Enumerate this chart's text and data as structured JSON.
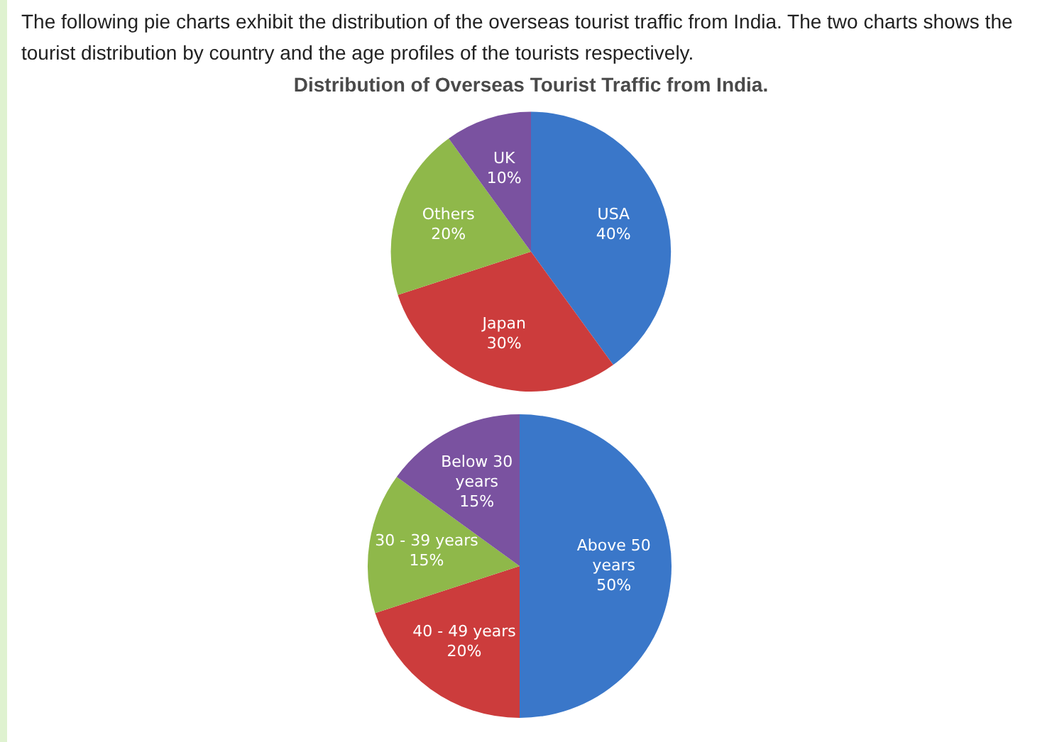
{
  "chart_data": [
    {
      "type": "pie",
      "title": "Distribution of Overseas Tourist Traffic from India.",
      "annotations": [
        "The following pie charts exhibit the distribution of the overseas tourist traffic from India. The two charts shows the tourist distribution by country and the age profiles of the tourists respectively."
      ],
      "categories": [
        "USA",
        "Japan",
        "Others",
        "UK"
      ],
      "values": [
        40,
        30,
        20,
        10
      ],
      "value_labels": [
        "40%",
        "30%",
        "20%",
        "10%"
      ],
      "colors": [
        "#3a77c9",
        "#cc3c3c",
        "#8fb84a",
        "#7a52a0"
      ]
    },
    {
      "type": "pie",
      "categories": [
        "Above 50 years",
        "40 - 49 years",
        "30 - 39 years",
        "Below 30 years"
      ],
      "values": [
        50,
        20,
        15,
        15
      ],
      "value_labels": [
        "50%",
        "20%",
        "15%",
        "15%"
      ],
      "colors": [
        "#3a77c9",
        "#cc3c3c",
        "#8fb84a",
        "#7a52a0"
      ]
    }
  ]
}
